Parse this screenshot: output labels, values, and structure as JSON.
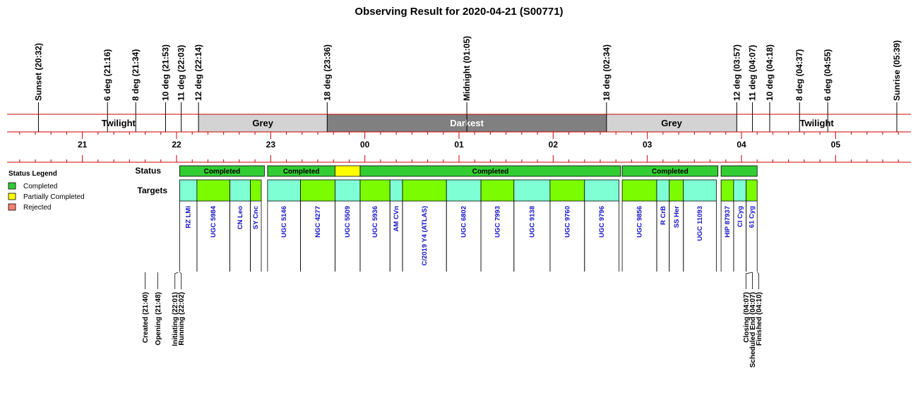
{
  "chart_data": {
    "type": "timeline",
    "title": "Observing Result for 2020-04-21 (S00771)",
    "time_axis": {
      "start": "20:12",
      "end": "05:48",
      "hour_ticks": [
        "21",
        "22",
        "23",
        "00",
        "01",
        "02",
        "03",
        "04",
        "05"
      ]
    },
    "events": [
      {
        "time": "20:32",
        "label": "Sunset (20:32)"
      },
      {
        "time": "21:16",
        "label": "6 deg (21:16)"
      },
      {
        "time": "21:34",
        "label": "8 deg (21:34)"
      },
      {
        "time": "21:53",
        "label": "10 deg (21:53)"
      },
      {
        "time": "22:03",
        "label": "11 deg (22:03)"
      },
      {
        "time": "22:14",
        "label": "12 deg (22:14)"
      },
      {
        "time": "23:36",
        "label": "18 deg (23:36)"
      },
      {
        "time": "01:05",
        "label": "Midnight (01:05)"
      },
      {
        "time": "02:34",
        "label": "18 deg (02:34)"
      },
      {
        "time": "03:57",
        "label": "12 deg (03:57)"
      },
      {
        "time": "04:07",
        "label": "11 deg (04:07)"
      },
      {
        "time": "04:18",
        "label": "10 deg (04:18)"
      },
      {
        "time": "04:37",
        "label": "8 deg (04:37)"
      },
      {
        "time": "04:55",
        "label": "6 deg (04:55)"
      },
      {
        "time": "05:39",
        "label": "Sunrise (05:39)"
      }
    ],
    "bands": [
      {
        "label": "",
        "start": "20:12",
        "end": "20:32",
        "color": "#ffffff",
        "text_color": "#000000"
      },
      {
        "label": "Twilight",
        "start": "20:32",
        "end": "22:14",
        "color": "#ffffff",
        "text_color": "#000000"
      },
      {
        "label": "Grey",
        "start": "22:14",
        "end": "23:36",
        "color": "#d3d3d3",
        "text_color": "#000000"
      },
      {
        "label": "Darkest",
        "start": "23:36",
        "end": "02:34",
        "color": "#808080",
        "text_color": "#ffffff"
      },
      {
        "label": "Grey",
        "start": "02:34",
        "end": "03:57",
        "color": "#d3d3d3",
        "text_color": "#000000"
      },
      {
        "label": "Twilight",
        "start": "03:57",
        "end": "05:39",
        "color": "#ffffff",
        "text_color": "#000000"
      },
      {
        "label": "",
        "start": "05:39",
        "end": "05:48",
        "color": "#ffffff",
        "text_color": "#000000"
      }
    ],
    "status_row_label": "Status",
    "status_segments": [
      {
        "label": "Completed",
        "start": "22:02",
        "end": "22:56",
        "status": "completed"
      },
      {
        "label": "Completed",
        "start": "22:58",
        "end": "23:41",
        "status": "completed"
      },
      {
        "label": "",
        "start": "23:41",
        "end": "23:57",
        "status": "partial"
      },
      {
        "label": "Completed",
        "start": "23:57",
        "end": "02:43",
        "status": "completed"
      },
      {
        "label": "Completed",
        "start": "02:44",
        "end": "03:45",
        "status": "completed"
      },
      {
        "label": "",
        "start": "03:47",
        "end": "04:10",
        "status": "completed"
      }
    ],
    "targets_row_label": "Targets",
    "targets": [
      {
        "name": "RZ LMi",
        "start": "22:02",
        "end": "22:13",
        "color": "#7fffd4"
      },
      {
        "name": "UGC 5984",
        "start": "22:13",
        "end": "22:34",
        "color": "#7cfc00"
      },
      {
        "name": "CN Leo",
        "start": "22:34",
        "end": "22:47",
        "color": "#7fffd4"
      },
      {
        "name": "SY Cnc",
        "start": "22:47",
        "end": "22:54",
        "color": "#7cfc00"
      },
      {
        "name": "UGC 5146",
        "start": "22:58",
        "end": "23:19",
        "color": "#7fffd4"
      },
      {
        "name": "NGC 4277",
        "start": "23:19",
        "end": "23:41",
        "color": "#7cfc00"
      },
      {
        "name": "UGC 5509",
        "start": "23:41",
        "end": "23:57",
        "color": "#7fffd4"
      },
      {
        "name": "UGC 5936",
        "start": "23:57",
        "end": "00:16",
        "color": "#7cfc00"
      },
      {
        "name": "AM CVn",
        "start": "00:16",
        "end": "00:24",
        "color": "#7fffd4"
      },
      {
        "name": "C/2019 Y4 (ATLAS)",
        "start": "00:24",
        "end": "00:52",
        "color": "#7cfc00"
      },
      {
        "name": "UGC 6802",
        "start": "00:52",
        "end": "01:14",
        "color": "#7fffd4"
      },
      {
        "name": "UGC 7993",
        "start": "01:14",
        "end": "01:35",
        "color": "#7cfc00"
      },
      {
        "name": "UGC 9138",
        "start": "01:35",
        "end": "01:58",
        "color": "#7fffd4"
      },
      {
        "name": "UGC 9760",
        "start": "01:58",
        "end": "02:20",
        "color": "#7cfc00"
      },
      {
        "name": "UGC 9796",
        "start": "02:20",
        "end": "02:42",
        "color": "#7fffd4"
      },
      {
        "name": "UGC 9856",
        "start": "02:44",
        "end": "03:06",
        "color": "#7cfc00"
      },
      {
        "name": "R CrB",
        "start": "03:06",
        "end": "03:14",
        "color": "#7fffd4"
      },
      {
        "name": "SS Her",
        "start": "03:14",
        "end": "03:23",
        "color": "#7cfc00"
      },
      {
        "name": "UGC 11093",
        "start": "03:23",
        "end": "03:44",
        "color": "#7fffd4"
      },
      {
        "name": "HIP 87937",
        "start": "03:47",
        "end": "03:55",
        "color": "#7cfc00"
      },
      {
        "name": "CI Cyg",
        "start": "03:55",
        "end": "04:03",
        "color": "#7fffd4"
      },
      {
        "name": "61 Cyg",
        "start": "04:03",
        "end": "04:10",
        "color": "#7cfc00"
      }
    ],
    "lifecycle": [
      {
        "label": "Created (21:40)",
        "time": "21:40"
      },
      {
        "label": "Opening (21:48)",
        "time": "21:48"
      },
      {
        "label": "Initiating (22:01)",
        "time": "22:01"
      },
      {
        "label": "Running (22:02)",
        "time": "22:02"
      },
      {
        "label": "Closing (04:07)",
        "time": "04:07"
      },
      {
        "label": "Scheduled End (04:07)",
        "time": "04:07"
      },
      {
        "label": "Finished (04:10)",
        "time": "04:10"
      }
    ],
    "legend": {
      "title": "Status Legend",
      "position": "left",
      "items": [
        {
          "label": "Completed",
          "color": "#32cd32"
        },
        {
          "label": "Partially Completed",
          "color": "#ffff00"
        },
        {
          "label": "Rejected",
          "color": "#fa8072"
        }
      ]
    },
    "status_colors": {
      "completed": "#32cd32",
      "partial": "#ffff00",
      "rejected": "#fa8072"
    },
    "rule_color": "#cc0000"
  }
}
